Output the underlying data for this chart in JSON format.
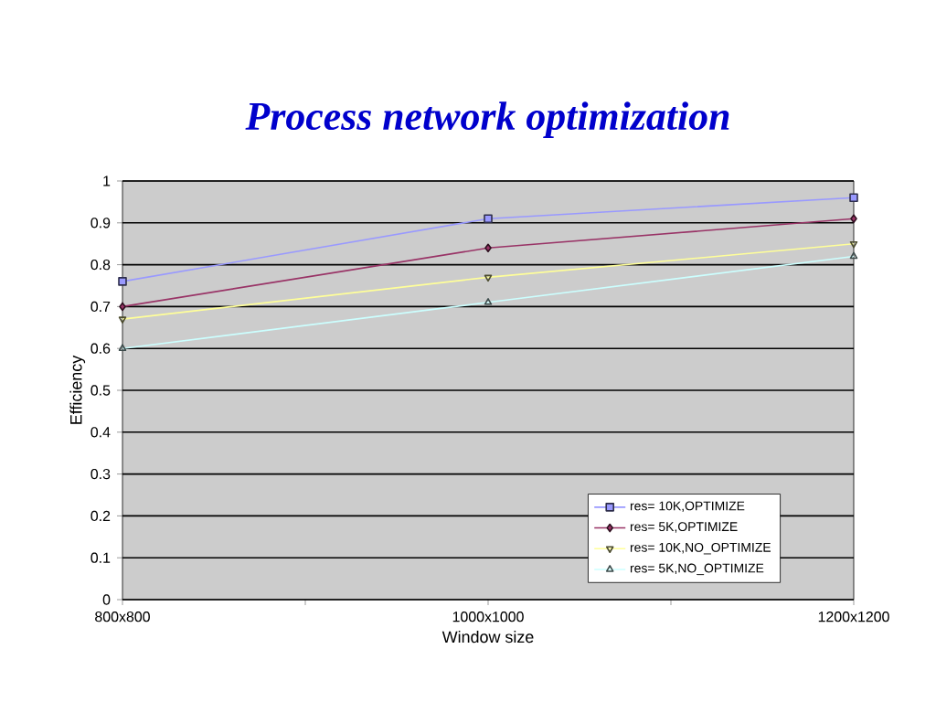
{
  "chart_data": {
    "type": "line",
    "title": "Process network optimization",
    "xlabel": "Window size",
    "ylabel": "Efficiency",
    "categories": [
      "800x800",
      "1000x1000",
      "1200x1200"
    ],
    "series": [
      {
        "name": "res= 10K,OPTIMIZE",
        "color": "#9999ff",
        "marker": "square",
        "values": [
          0.76,
          0.91,
          0.96
        ]
      },
      {
        "name": "res= 5K,OPTIMIZE",
        "color": "#993366",
        "marker": "diamond",
        "values": [
          0.7,
          0.84,
          0.91
        ]
      },
      {
        "name": "res= 10K,NO_OPTIMIZE",
        "color": "#ffff99",
        "marker": "triangle_down",
        "values": [
          0.67,
          0.77,
          0.85
        ]
      },
      {
        "name": "res= 5K,NO_OPTIMIZE",
        "color": "#ccffff",
        "marker": "triangle",
        "values": [
          0.6,
          0.71,
          0.82
        ]
      }
    ],
    "ylim": [
      0,
      1
    ],
    "yticks": [
      0,
      0.1,
      0.2,
      0.3,
      0.4,
      0.5,
      0.6,
      0.7,
      0.8,
      0.9,
      1
    ],
    "grid": "y",
    "legend": "bottom right",
    "line_style": "solid"
  }
}
